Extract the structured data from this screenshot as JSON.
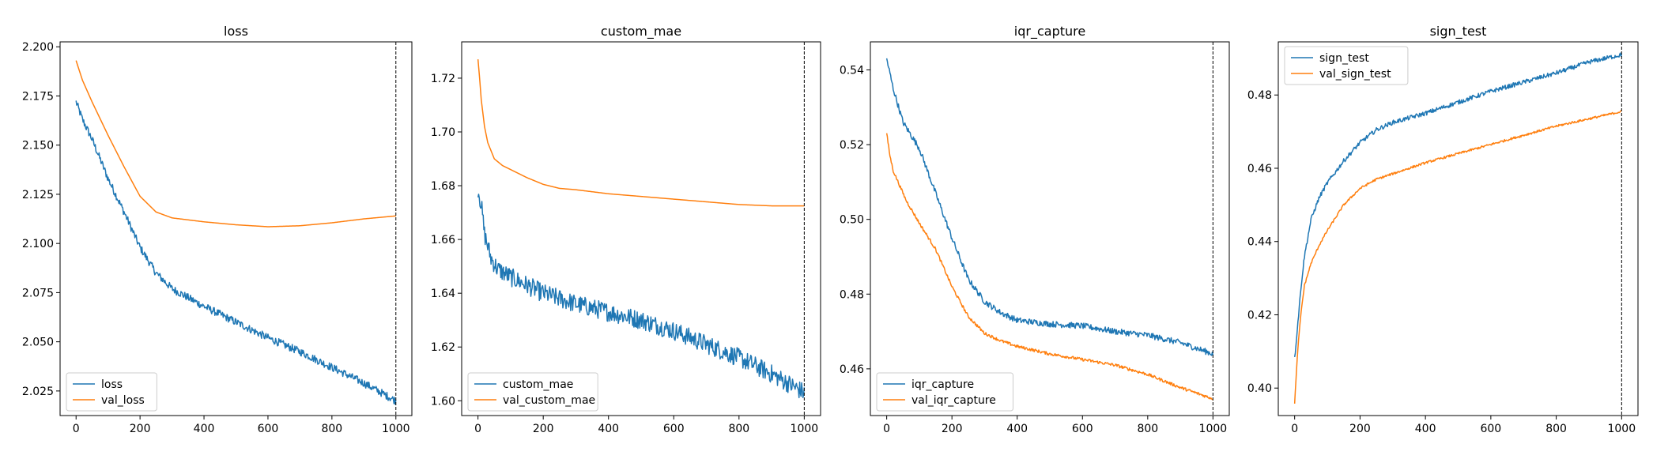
{
  "chart_data": [
    {
      "type": "line",
      "title": "loss",
      "xlabel": "",
      "ylabel": "",
      "xlim": [
        -50,
        1050
      ],
      "ylim": [
        2.0125,
        2.2025
      ],
      "xticks": [
        0,
        200,
        400,
        600,
        800,
        1000
      ],
      "yticks": [
        2.025,
        2.05,
        2.075,
        2.1,
        2.125,
        2.15,
        2.175,
        2.2
      ],
      "ytick_labels": [
        "2.025",
        "2.050",
        "2.075",
        "2.100",
        "2.125",
        "2.150",
        "2.175",
        "2.200"
      ],
      "vline_x": 1000,
      "legend_loc": "lower-left",
      "series": [
        {
          "name": "loss",
          "color": "#1f77b4",
          "noise": 0.002,
          "x": [
            0,
            20,
            50,
            100,
            150,
            200,
            250,
            300,
            400,
            500,
            600,
            700,
            800,
            900,
            1000
          ],
          "y": [
            2.172,
            2.163,
            2.153,
            2.133,
            2.116,
            2.098,
            2.085,
            2.077,
            2.068,
            2.06,
            2.052,
            2.045,
            2.037,
            2.029,
            2.02
          ]
        },
        {
          "name": "val_loss",
          "color": "#ff7f0e",
          "noise": 0,
          "x": [
            0,
            20,
            50,
            100,
            150,
            200,
            250,
            300,
            400,
            500,
            600,
            700,
            800,
            900,
            1000
          ],
          "y": [
            2.193,
            2.183,
            2.172,
            2.155,
            2.139,
            2.124,
            2.116,
            2.113,
            2.111,
            2.1095,
            2.1085,
            2.109,
            2.1105,
            2.1125,
            2.114
          ]
        }
      ]
    },
    {
      "type": "line",
      "title": "custom_mae",
      "xlabel": "",
      "ylabel": "",
      "xlim": [
        -50,
        1050
      ],
      "ylim": [
        1.5945,
        1.7335
      ],
      "xticks": [
        0,
        200,
        400,
        600,
        800,
        1000
      ],
      "yticks": [
        1.6,
        1.62,
        1.64,
        1.66,
        1.68,
        1.7,
        1.72
      ],
      "ytick_labels": [
        "1.60",
        "1.62",
        "1.64",
        "1.66",
        "1.68",
        "1.70",
        "1.72"
      ],
      "vline_x": 1000,
      "legend_loc": "lower-left",
      "series": [
        {
          "name": "custom_mae",
          "color": "#1f77b4",
          "noise": 0.0035,
          "x": [
            0,
            10,
            20,
            40,
            60,
            100,
            150,
            200,
            300,
            400,
            500,
            600,
            700,
            800,
            900,
            1000
          ],
          "y": [
            1.679,
            1.673,
            1.662,
            1.653,
            1.649,
            1.646,
            1.643,
            1.64,
            1.636,
            1.633,
            1.63,
            1.626,
            1.621,
            1.616,
            1.61,
            1.603
          ]
        },
        {
          "name": "val_custom_mae",
          "color": "#ff7f0e",
          "noise": 0,
          "x": [
            0,
            5,
            10,
            20,
            30,
            50,
            75,
            100,
            150,
            200,
            250,
            300,
            400,
            500,
            600,
            700,
            800,
            900,
            1000
          ],
          "y": [
            1.727,
            1.72,
            1.712,
            1.702,
            1.696,
            1.69,
            1.6875,
            1.686,
            1.683,
            1.6805,
            1.679,
            1.6785,
            1.677,
            1.676,
            1.675,
            1.674,
            1.673,
            1.6725,
            1.6725
          ]
        }
      ]
    },
    {
      "type": "line",
      "title": "iqr_capture",
      "xlabel": "",
      "ylabel": "",
      "xlim": [
        -50,
        1050
      ],
      "ylim": [
        0.4475,
        0.5475
      ],
      "xticks": [
        0,
        200,
        400,
        600,
        800,
        1000
      ],
      "yticks": [
        0.46,
        0.48,
        0.5,
        0.52,
        0.54
      ],
      "ytick_labels": [
        "0.46",
        "0.48",
        "0.50",
        "0.52",
        "0.54"
      ],
      "vline_x": 1000,
      "legend_loc": "lower-left",
      "series": [
        {
          "name": "iqr_capture",
          "color": "#1f77b4",
          "noise": 0.0008,
          "x": [
            0,
            20,
            50,
            100,
            150,
            200,
            250,
            300,
            350,
            400,
            500,
            600,
            700,
            800,
            900,
            1000
          ],
          "y": [
            0.543,
            0.535,
            0.526,
            0.519,
            0.507,
            0.495,
            0.484,
            0.478,
            0.475,
            0.473,
            0.472,
            0.4715,
            0.47,
            0.469,
            0.467,
            0.464
          ]
        },
        {
          "name": "val_iqr_capture",
          "color": "#ff7f0e",
          "noise": 0.0004,
          "x": [
            0,
            10,
            20,
            40,
            60,
            100,
            150,
            200,
            250,
            300,
            350,
            400,
            500,
            600,
            700,
            800,
            900,
            1000
          ],
          "y": [
            0.523,
            0.517,
            0.513,
            0.509,
            0.505,
            0.499,
            0.492,
            0.482,
            0.474,
            0.4695,
            0.4675,
            0.466,
            0.464,
            0.4625,
            0.461,
            0.4585,
            0.455,
            0.452
          ]
        }
      ]
    },
    {
      "type": "line",
      "title": "sign_test",
      "xlabel": "",
      "ylabel": "",
      "xlim": [
        -50,
        1050
      ],
      "ylim": [
        0.3925,
        0.4945
      ],
      "xticks": [
        0,
        200,
        400,
        600,
        800,
        1000
      ],
      "yticks": [
        0.4,
        0.42,
        0.44,
        0.46,
        0.48
      ],
      "ytick_labels": [
        "0.40",
        "0.42",
        "0.44",
        "0.46",
        "0.48"
      ],
      "vline_x": 1000,
      "legend_loc": "upper-left",
      "series": [
        {
          "name": "sign_test",
          "color": "#1f77b4",
          "noise": 0.0006,
          "x": [
            0,
            10,
            20,
            30,
            50,
            75,
            100,
            150,
            200,
            250,
            300,
            400,
            500,
            600,
            700,
            800,
            900,
            1000
          ],
          "y": [
            0.408,
            0.418,
            0.428,
            0.436,
            0.446,
            0.452,
            0.456,
            0.462,
            0.467,
            0.4705,
            0.4725,
            0.475,
            0.478,
            0.481,
            0.4835,
            0.486,
            0.489,
            0.491
          ]
        },
        {
          "name": "val_sign_test",
          "color": "#ff7f0e",
          "noise": 0.0003,
          "x": [
            0,
            10,
            20,
            30,
            50,
            75,
            100,
            150,
            200,
            250,
            300,
            400,
            500,
            600,
            700,
            800,
            900,
            1000
          ],
          "y": [
            0.396,
            0.411,
            0.421,
            0.428,
            0.434,
            0.439,
            0.443,
            0.45,
            0.4545,
            0.457,
            0.4585,
            0.4615,
            0.464,
            0.4665,
            0.469,
            0.4715,
            0.4735,
            0.4755
          ]
        }
      ]
    }
  ]
}
